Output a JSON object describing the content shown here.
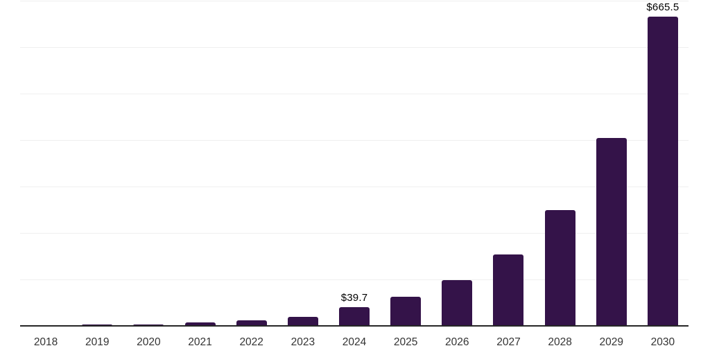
{
  "chart_data": {
    "type": "bar",
    "title": "",
    "xlabel": "",
    "ylabel": "",
    "categories": [
      "2018",
      "2019",
      "2020",
      "2021",
      "2022",
      "2023",
      "2024",
      "2025",
      "2026",
      "2027",
      "2028",
      "2029",
      "2030"
    ],
    "values": [
      1.0,
      2.8,
      3.0,
      7.0,
      11.5,
      20.0,
      39.7,
      62.0,
      99.0,
      154.0,
      249.0,
      405.0,
      665.5
    ],
    "bar_labels": [
      "",
      "",
      "",
      "",
      "",
      "",
      "$39.7",
      "",
      "",
      "",
      "",
      "",
      "$665.5"
    ],
    "ylim": [
      0,
      700
    ],
    "grid_step": 100,
    "grid": "horizontal-only",
    "legend_position": "none",
    "colors": {
      "bar": "#341349",
      "axis_line": "#262626",
      "gridline": "#efefef",
      "tick_label": "#333333",
      "value_label": "#000000",
      "background": "#ffffff"
    }
  }
}
